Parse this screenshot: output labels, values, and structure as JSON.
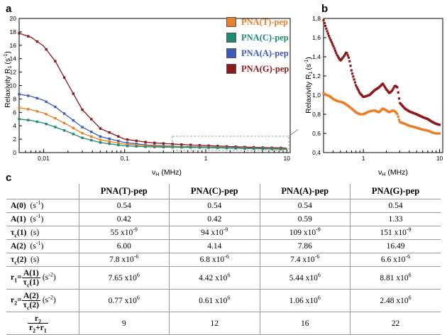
{
  "panels": {
    "a": "a",
    "b": "b",
    "c": "c"
  },
  "colors": {
    "T": "#e8802a",
    "C": "#1f8a72",
    "A": "#3d5bbd",
    "G": "#8b1a1a"
  },
  "legend": [
    "PNA(T)-pep",
    "PNA(C)-pep",
    "PNA(A)-pep",
    "PNA(G)-pep"
  ],
  "chart_data": [
    {
      "type": "line",
      "panel": "a",
      "xlabel_main": "ν",
      "xlabel_sub": "H",
      "xlabel_unit": "(MHz)",
      "ylabel": "Relaxivity R",
      "ylabel_sub": "1",
      "ylabel_unit": "(s",
      "ylabel_exp": "-1",
      "ylabel_close": ")",
      "xscale": "log",
      "xlim": [
        0.005,
        11
      ],
      "ylim": [
        0,
        20
      ],
      "xticks": [
        "0,01",
        "0,1",
        "1",
        "10"
      ],
      "yticks": [
        "0",
        "2",
        "4",
        "6",
        "8",
        "10",
        "12",
        "14",
        "16",
        "18",
        "20"
      ],
      "series": [
        {
          "name": "PNA(G)-pep",
          "color": "#8b1a1a",
          "x": [
            0.005,
            0.007,
            0.01,
            0.014,
            0.02,
            0.03,
            0.05,
            0.1,
            0.2,
            0.5,
            1,
            2,
            5,
            10
          ],
          "y": [
            17.8,
            17.2,
            15.9,
            13.6,
            10.2,
            6.4,
            3.6,
            2.0,
            1.5,
            1.2,
            1.05,
            0.9,
            0.75,
            0.68
          ]
        },
        {
          "name": "PNA(A)-pep",
          "color": "#3d5bbd",
          "x": [
            0.005,
            0.007,
            0.01,
            0.014,
            0.02,
            0.03,
            0.05,
            0.1,
            0.2,
            0.5,
            1,
            2,
            5,
            10
          ],
          "y": [
            8.7,
            8.4,
            7.8,
            6.8,
            5.4,
            3.8,
            2.4,
            1.5,
            1.1,
            0.9,
            0.85,
            0.75,
            0.62,
            0.55
          ]
        },
        {
          "name": "PNA(T)-pep",
          "color": "#e8802a",
          "x": [
            0.005,
            0.007,
            0.01,
            0.014,
            0.02,
            0.03,
            0.05,
            0.1,
            0.2,
            0.5,
            1,
            2,
            5,
            10
          ],
          "y": [
            6.7,
            6.4,
            5.9,
            5.1,
            4.1,
            2.9,
            1.9,
            1.25,
            1.0,
            0.85,
            0.8,
            0.7,
            0.6,
            0.55
          ]
        },
        {
          "name": "PNA(C)-pep",
          "color": "#1f8a72",
          "x": [
            0.005,
            0.007,
            0.01,
            0.014,
            0.02,
            0.03,
            0.05,
            0.1,
            0.2,
            0.5,
            1,
            2,
            5,
            10
          ],
          "y": [
            5.0,
            4.8,
            4.4,
            3.8,
            3.1,
            2.2,
            1.5,
            1.0,
            0.85,
            0.78,
            0.74,
            0.66,
            0.56,
            0.5
          ]
        }
      ]
    },
    {
      "type": "line",
      "panel": "b",
      "xlabel_main": "ν",
      "xlabel_sub": "H",
      "xlabel_unit": "(MHz)",
      "ylabel": "Relaxivity R",
      "ylabel_sub": "1",
      "ylabel_unit": "(s",
      "ylabel_exp": "-1",
      "ylabel_close": ")",
      "xscale": "log",
      "xlim": [
        0.3,
        11
      ],
      "ylim": [
        0.4,
        1.8
      ],
      "xticks": [
        "1",
        "10"
      ],
      "yticks": [
        "0,4",
        "0,6",
        "0,8",
        "1,0",
        "1,2",
        "1,4",
        "1,6",
        "1,8"
      ],
      "series": [
        {
          "name": "PNA(G)-pep",
          "color": "#8b1a1a",
          "x": [
            0.3,
            0.33,
            0.36,
            0.4,
            0.45,
            0.5,
            0.55,
            0.6,
            0.65,
            0.7,
            0.8,
            0.9,
            1.0,
            1.2,
            1.4,
            1.6,
            1.8,
            2.0,
            2.2,
            2.4,
            2.6,
            2.8,
            3.0,
            3.5,
            4,
            5,
            6,
            7,
            8,
            9,
            10
          ],
          "y": [
            1.78,
            1.68,
            1.6,
            1.52,
            1.42,
            1.36,
            1.4,
            1.45,
            1.38,
            1.25,
            1.1,
            1.02,
            0.98,
            1.0,
            1.05,
            1.08,
            1.12,
            1.06,
            1.02,
            1.05,
            1.1,
            1.08,
            0.92,
            0.86,
            0.83,
            0.8,
            0.77,
            0.75,
            0.72,
            0.7,
            0.69
          ]
        },
        {
          "name": "PNA(T)-pep",
          "color": "#e8802a",
          "x": [
            0.3,
            0.33,
            0.36,
            0.4,
            0.45,
            0.5,
            0.55,
            0.6,
            0.65,
            0.7,
            0.8,
            0.9,
            1.0,
            1.2,
            1.4,
            1.6,
            1.8,
            2.0,
            2.2,
            2.4,
            2.6,
            2.8,
            3.0,
            3.5,
            4,
            5,
            6,
            7,
            8,
            9,
            10
          ],
          "y": [
            1.02,
            1.0,
            0.99,
            0.96,
            0.94,
            0.93,
            0.92,
            0.9,
            0.88,
            0.86,
            0.82,
            0.8,
            0.8,
            0.83,
            0.84,
            0.82,
            0.86,
            0.84,
            0.82,
            0.84,
            0.83,
            0.8,
            0.72,
            0.7,
            0.68,
            0.66,
            0.64,
            0.63,
            0.61,
            0.6,
            0.6
          ]
        }
      ]
    }
  ],
  "table": {
    "headers": [
      "",
      "PNA(T)-pep",
      "PNA(C)-pep",
      "PNA(A)-pep",
      "PNA(G)-pep"
    ],
    "rows": [
      {
        "label": "A(0)",
        "unit": "(s",
        "unit_exp": "-1",
        "unit_close": ")",
        "values": [
          "0.54",
          "0.54",
          "0.54",
          "0.54"
        ]
      },
      {
        "label": "A(1)",
        "unit": "(s",
        "unit_exp": "-1",
        "unit_close": ")",
        "values": [
          "0.42",
          "0.42",
          "0.59",
          "1.33"
        ]
      },
      {
        "label": "τ",
        "label_sub": "c",
        "label_tail": "(1)",
        "unit": "(s)",
        "values": [
          "55 x10",
          "94 x10",
          "109 x10",
          "151 x10"
        ],
        "exp": "-9"
      },
      {
        "label": "A(2)",
        "unit": "(s",
        "unit_exp": "-1",
        "unit_close": ")",
        "values": [
          "6.00",
          "4.14",
          "7.86",
          "16.49"
        ]
      },
      {
        "label": "τ",
        "label_sub": "c",
        "label_tail": "(2)",
        "unit": "(s)",
        "values": [
          "7.8 x10",
          "6.8 x10",
          "7.4 x10",
          "6.6 x10"
        ],
        "exp": "-6"
      },
      {
        "label": "r",
        "label_sub": "1",
        "eq": "=",
        "num": "A(1)",
        "den": "τ",
        "den_sub": "c",
        "den_tail": "(1)",
        "unit": "(s",
        "unit_exp": "-2",
        "unit_close": ")",
        "values": [
          "7.65 x10",
          "4.42 x10",
          "5.44 x10",
          "8.81 x10"
        ],
        "exp": "6"
      },
      {
        "label": "r",
        "label_sub": "2",
        "eq": "=",
        "num": "A(2)",
        "den": "τ",
        "den_sub": "c",
        "den_tail": "(2)",
        "unit": "(s",
        "unit_exp": "-2",
        "unit_close": ")",
        "values": [
          "0.77 x10",
          "0.61 x10",
          "1.06 x10",
          "2.48 x10"
        ],
        "exp": "6"
      },
      {
        "num": "r",
        "num_sub": "2",
        "den": "r",
        "den_sub": "2",
        "den_mid": "+r",
        "den_sub2": "1",
        "values": [
          "9",
          "12",
          "16",
          "22"
        ]
      }
    ]
  }
}
